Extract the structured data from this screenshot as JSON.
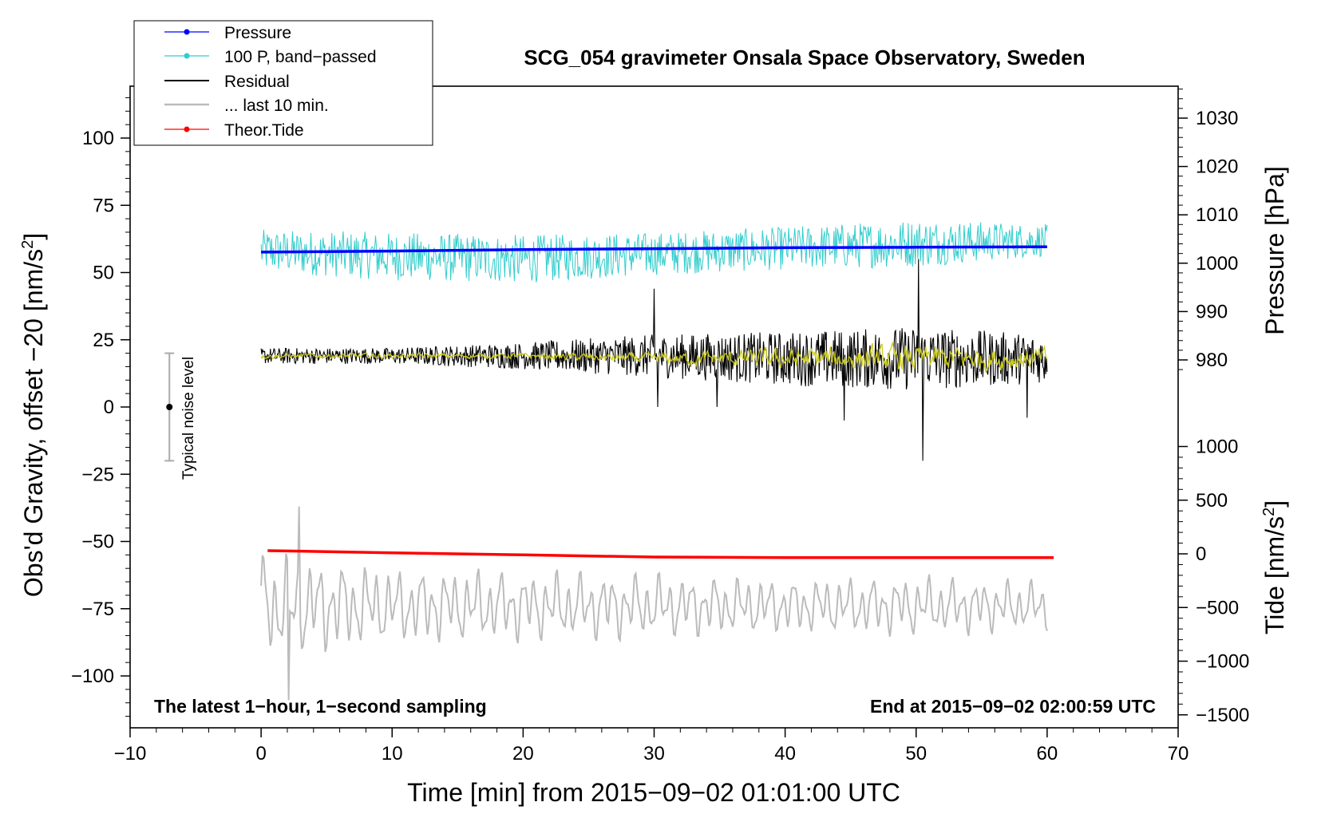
{
  "chart_data": {
    "type": "line",
    "title": "SCG_054 gravimeter Onsala Space Observatory, Sweden",
    "xlabel": "Time [min] from 2015−09−02 01:01:00 UTC",
    "ylabel_left": "Obs'd Gravity, offset −20 [nm/s",
    "ylabel_left_sup": "2",
    "ylabel_left_close": "]",
    "ylabel_pressure": "Pressure [hPa]",
    "ylabel_tide": "Tide [nm/s",
    "ylabel_tide_sup": "2",
    "ylabel_tide_close": "]",
    "xlim": [
      -10,
      70
    ],
    "ylim_left": [
      -120,
      120
    ],
    "xticks": [
      -10,
      0,
      10,
      20,
      30,
      40,
      50,
      60,
      70
    ],
    "xtick_labels": [
      "−10",
      "0",
      "10",
      "20",
      "30",
      "40",
      "50",
      "60",
      "70"
    ],
    "yticks_left": [
      -100,
      -75,
      -50,
      -25,
      0,
      25,
      50,
      75,
      100
    ],
    "ytick_labels_left": [
      "−100",
      "−75",
      "−50",
      "−25",
      "0",
      "25",
      "50",
      "75",
      "100"
    ],
    "pressure_ticks": [
      980,
      990,
      1000,
      1010,
      1020,
      1030
    ],
    "pressure_tick_labels": [
      "980",
      "990",
      "1000",
      "1010",
      "1020",
      "1030"
    ],
    "tide_ticks": [
      -1500,
      -1000,
      -500,
      0,
      500,
      1000
    ],
    "tide_tick_labels": [
      "−1500",
      "−1000",
      "−500",
      "0",
      "500",
      "1000"
    ],
    "notes": {
      "left": "The latest 1−hour, 1−second sampling",
      "right": "End at 2015−09−02 02:00:59 UTC"
    },
    "noise_label": "Typical noise level",
    "noise_bar": {
      "x": -7,
      "center": 0,
      "half_range": 20
    },
    "legend": [
      {
        "label": "Pressure",
        "color": "#0000ff",
        "marker": true
      },
      {
        "label": "100 P, band−passed",
        "color": "#33cccc",
        "marker": true
      },
      {
        "label": "Residual",
        "color": "#000000",
        "marker": false
      },
      {
        "label": "... last 10 min.",
        "color": "#bbbbbb",
        "marker": false
      },
      {
        "label": "Theor.Tide",
        "color": "#ff0000",
        "marker": true
      }
    ],
    "series": [
      {
        "name": "Pressure",
        "color": "#0000ff",
        "axis": "pressure",
        "x": [
          0,
          10,
          20,
          30,
          40,
          50,
          60
        ],
        "values": [
          1002.3,
          1002.5,
          1002.8,
          1003.0,
          1003.2,
          1003.3,
          1003.4
        ]
      },
      {
        "name": "100 P, band−passed",
        "color": "#33cccc",
        "axis": "left",
        "x_range": [
          0,
          60
        ],
        "base_values": [
          58,
          56,
          55,
          57,
          59,
          61,
          62
        ],
        "amplitude": [
          8,
          9,
          9,
          8,
          8,
          9,
          6
        ]
      },
      {
        "name": "Residual",
        "color": "#000000",
        "axis": "left",
        "x_range": [
          0,
          60
        ],
        "base_values": [
          19,
          19,
          19,
          19,
          18,
          18,
          18
        ],
        "amplitude": [
          3,
          3,
          5,
          8,
          10,
          12,
          9
        ],
        "spikes": [
          {
            "x": 30.0,
            "y": 44
          },
          {
            "x": 30.3,
            "y": 0
          },
          {
            "x": 34.8,
            "y": 0
          },
          {
            "x": 44.5,
            "y": -5
          },
          {
            "x": 50.2,
            "y": 55
          },
          {
            "x": 50.5,
            "y": -20
          },
          {
            "x": 58.5,
            "y": -4
          }
        ]
      },
      {
        "name": "Residual (smoothed)",
        "color": "#cccc22",
        "axis": "left",
        "x_range": [
          0,
          60
        ],
        "base_values": [
          19,
          19,
          19,
          18,
          18,
          18,
          18
        ],
        "amplitude": [
          1,
          1,
          1,
          2,
          4,
          5,
          4
        ]
      },
      {
        "name": "... last 10 min.",
        "color": "#bbbbbb",
        "axis": "left",
        "x_range": [
          0,
          60
        ],
        "base_values": [
          -74,
          -74,
          -74,
          -74,
          -74,
          -74,
          -74
        ],
        "amplitude": [
          20,
          14,
          13,
          12,
          10,
          11,
          9
        ],
        "peaks": [
          {
            "x": 2.1,
            "y": -109
          },
          {
            "x": 2.9,
            "y": -37
          }
        ]
      },
      {
        "name": "Theor.Tide",
        "color": "#ff0000",
        "axis": "tide",
        "x": [
          0.5,
          10,
          20,
          30,
          40,
          50,
          60.5
        ],
        "values": [
          30,
          10,
          -10,
          -30,
          -35,
          -35,
          -35
        ]
      }
    ]
  }
}
